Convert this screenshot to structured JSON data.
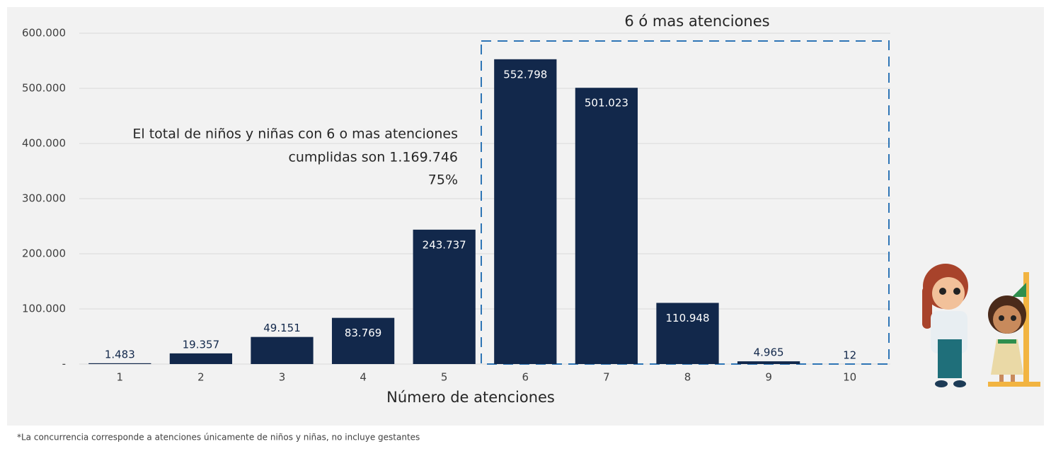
{
  "chart_data": {
    "type": "bar",
    "categories": [
      "1",
      "2",
      "3",
      "4",
      "5",
      "6",
      "7",
      "8",
      "9",
      "10"
    ],
    "values": [
      1483,
      19357,
      49151,
      83769,
      243737,
      552798,
      501023,
      110948,
      4965,
      12
    ],
    "value_labels": [
      "1.483",
      "19.357",
      "49.151",
      "83.769",
      "243.737",
      "552.798",
      "501.023",
      "110.948",
      "4.965",
      "12"
    ],
    "color": "#12284b",
    "ylim": [
      0,
      600000
    ],
    "yticks": [
      {
        "value": 0,
        "label": "-"
      },
      {
        "value": 100000,
        "label": "100.000"
      },
      {
        "value": 200000,
        "label": "200.000"
      },
      {
        "value": 300000,
        "label": "300.000"
      },
      {
        "value": 400000,
        "label": "400.000"
      },
      {
        "value": 500000,
        "label": "500.000"
      },
      {
        "value": 600000,
        "label": "600.000"
      }
    ],
    "grid": true,
    "x_label": "Número de atenciones",
    "highlight_label": "6 ó mas atenciones",
    "annotation": [
      "El total de niños y niñas con 6 o mas atenciones",
      "cumplidas son 1.169.746",
      "75%"
    ],
    "footnote": "*La concurrencia corresponde a atenciones únicamente de niños y niñas, no incluye gestantes"
  }
}
